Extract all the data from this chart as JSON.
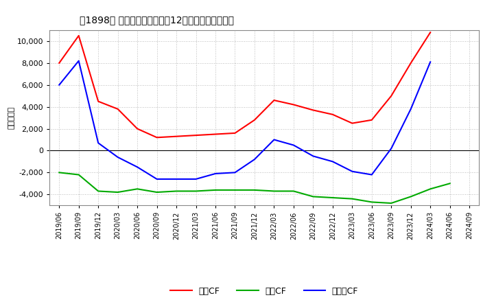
{
  "title": "【1898】 キャッシュフローの12か月移動合計の推移",
  "ylabel": "（百万円）",
  "background_color": "#ffffff",
  "plot_background": "#ffffff",
  "grid_color": "#aaaaaa",
  "ylim": [
    -5000,
    11000
  ],
  "yticks": [
    -4000,
    -2000,
    0,
    2000,
    4000,
    6000,
    8000,
    10000
  ],
  "dates": [
    "2019/06",
    "2019/09",
    "2019/12",
    "2020/03",
    "2020/06",
    "2020/09",
    "2020/12",
    "2021/03",
    "2021/06",
    "2021/09",
    "2021/12",
    "2022/03",
    "2022/06",
    "2022/09",
    "2022/12",
    "2023/03",
    "2023/06",
    "2023/09",
    "2023/12",
    "2024/03",
    "2024/06",
    "2024/09"
  ],
  "eigyo_cf": [
    8000,
    10500,
    4500,
    3800,
    2000,
    1200,
    1300,
    1400,
    1500,
    1600,
    2800,
    4600,
    4200,
    3700,
    3300,
    2500,
    2800,
    5000,
    8000,
    10800,
    null,
    null
  ],
  "toshi_cf": [
    -2000,
    -2200,
    -3700,
    -3800,
    -3500,
    -3800,
    -3700,
    -3700,
    -3600,
    -3600,
    -3600,
    -3700,
    -3700,
    -4200,
    -4300,
    -4400,
    -4700,
    -4800,
    -4200,
    -3500,
    -3000,
    null
  ],
  "free_cf": [
    6000,
    8200,
    700,
    -600,
    -1500,
    -2600,
    -2600,
    -2600,
    -2100,
    -2000,
    -800,
    1000,
    500,
    -500,
    -1000,
    -1900,
    -2200,
    200,
    3800,
    8100,
    null,
    null
  ],
  "eigyo_color": "#ff0000",
  "toshi_color": "#00aa00",
  "free_color": "#0000ff",
  "legend_labels": [
    "営業CF",
    "投資CF",
    "フリーCF"
  ]
}
